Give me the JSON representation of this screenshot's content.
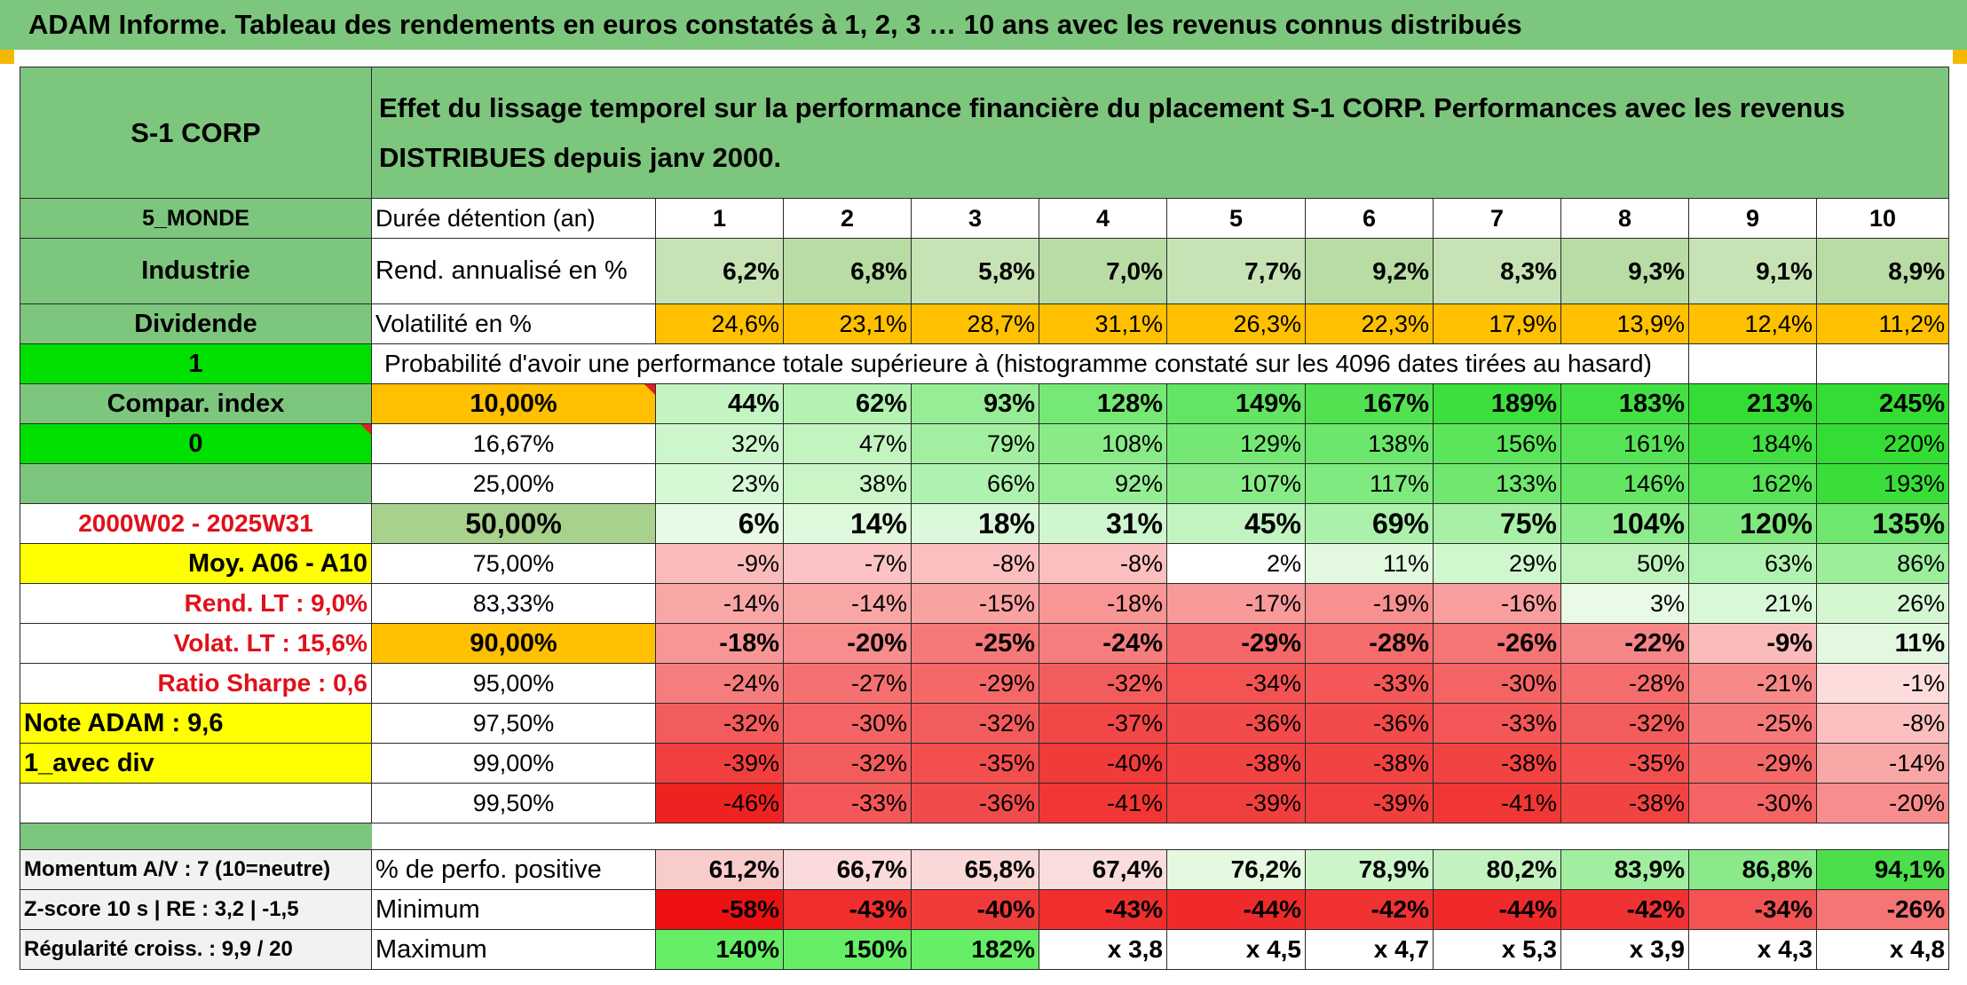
{
  "title": "ADAM Informe. Tableau des rendements en euros constatés à 1, 2, 3 … 10 ans avec les revenus connus distribués",
  "product": "S-1 CORP",
  "header_text": "Effet du lissage temporel sur la performance financière du placement S-1 CORP. Performances avec les revenus DISTRIBUES depuis janv 2000.",
  "duration": {
    "left": "5_MONDE",
    "label": "Durée détention (an)",
    "years": [
      "1",
      "2",
      "3",
      "4",
      "5",
      "6",
      "7",
      "8",
      "9",
      "10"
    ]
  },
  "rend": {
    "left": "Industrie",
    "label": "Rend. annualisé en %",
    "values": [
      "6,2%",
      "6,8%",
      "5,8%",
      "7,0%",
      "7,7%",
      "9,2%",
      "8,3%",
      "9,3%",
      "9,1%",
      "8,9%"
    ]
  },
  "volat": {
    "left": "Dividende",
    "label": "Volatilité en %",
    "values": [
      "24,6%",
      "23,1%",
      "28,7%",
      "31,1%",
      "26,3%",
      "22,3%",
      "17,9%",
      "13,9%",
      "12,4%",
      "11,2%"
    ]
  },
  "proba": {
    "left": "1",
    "text": "Probabilité d'avoir une performance totale supérieure à (histogramme constaté sur les 4096 dates tirées au hasard)"
  },
  "prob_rows": [
    {
      "left": "Compar. index",
      "pct": "10,00%",
      "values": [
        "44%",
        "62%",
        "93%",
        "128%",
        "149%",
        "167%",
        "189%",
        "183%",
        "213%",
        "245%"
      ]
    },
    {
      "left": "0",
      "pct": "16,67%",
      "values": [
        "32%",
        "47%",
        "79%",
        "108%",
        "129%",
        "138%",
        "156%",
        "161%",
        "184%",
        "220%"
      ]
    },
    {
      "left": "",
      "pct": "25,00%",
      "values": [
        "23%",
        "38%",
        "66%",
        "92%",
        "107%",
        "117%",
        "133%",
        "146%",
        "162%",
        "193%"
      ]
    },
    {
      "left": "2000W02 - 2025W31",
      "pct": "50,00%",
      "values": [
        "6%",
        "14%",
        "18%",
        "31%",
        "45%",
        "69%",
        "75%",
        "104%",
        "120%",
        "135%"
      ]
    },
    {
      "left": "Moy. A06 - A10",
      "pct": "75,00%",
      "values": [
        "-9%",
        "-7%",
        "-8%",
        "-8%",
        "2%",
        "11%",
        "29%",
        "50%",
        "63%",
        "86%"
      ]
    },
    {
      "left": "Rend. LT :   9,0%",
      "pct": "83,33%",
      "values": [
        "-14%",
        "-14%",
        "-15%",
        "-18%",
        "-17%",
        "-19%",
        "-16%",
        "3%",
        "21%",
        "26%"
      ]
    },
    {
      "left": "Volat. LT :   15,6%",
      "pct": "90,00%",
      "values": [
        "-18%",
        "-20%",
        "-25%",
        "-24%",
        "-29%",
        "-28%",
        "-26%",
        "-22%",
        "-9%",
        "11%"
      ]
    },
    {
      "left": "Ratio Sharpe :    0,6",
      "pct": "95,00%",
      "values": [
        "-24%",
        "-27%",
        "-29%",
        "-32%",
        "-34%",
        "-33%",
        "-30%",
        "-28%",
        "-21%",
        "-1%"
      ]
    },
    {
      "left": "Note ADAM : 9,6",
      "pct": "97,50%",
      "values": [
        "-32%",
        "-30%",
        "-32%",
        "-37%",
        "-36%",
        "-36%",
        "-33%",
        "-32%",
        "-25%",
        "-8%"
      ]
    },
    {
      "left": "1_avec div",
      "pct": "99,00%",
      "values": [
        "-39%",
        "-32%",
        "-35%",
        "-40%",
        "-38%",
        "-38%",
        "-38%",
        "-35%",
        "-29%",
        "-14%"
      ]
    },
    {
      "left": "",
      "pct": "99,50%",
      "values": [
        "-46%",
        "-33%",
        "-36%",
        "-41%",
        "-39%",
        "-39%",
        "-41%",
        "-38%",
        "-30%",
        "-20%"
      ]
    }
  ],
  "bottom_rows": [
    {
      "left": "Momentum A/V : 7 (10=neutre)",
      "label": "% de perfo. positive",
      "values": [
        "61,2%",
        "66,7%",
        "65,8%",
        "67,4%",
        "76,2%",
        "78,9%",
        "80,2%",
        "83,9%",
        "86,8%",
        "94,1%"
      ]
    },
    {
      "left": "Z-score 10 s | RE : 3,2 | -1,5",
      "label": "Minimum",
      "values": [
        "-58%",
        "-43%",
        "-40%",
        "-43%",
        "-44%",
        "-42%",
        "-44%",
        "-42%",
        "-34%",
        "-26%"
      ]
    },
    {
      "left": "Régularité croiss. : 9,9 / 20",
      "label": "Maximum",
      "values": [
        "140%",
        "150%",
        "182%",
        "x 3,8",
        "x 4,5",
        "x 4,7",
        "x 5,3",
        "x 3,9",
        "x 4,3",
        "x 4,8"
      ]
    }
  ],
  "colors": {
    "header_green": "#7dc67e",
    "volat_orange": "#ffc000",
    "highlight_yellow": "#ffff00",
    "bright_green": "#00e000",
    "red_text": "#e0101a",
    "rend_shade": [
      "#c7e3b5",
      "#b9dca4"
    ]
  }
}
